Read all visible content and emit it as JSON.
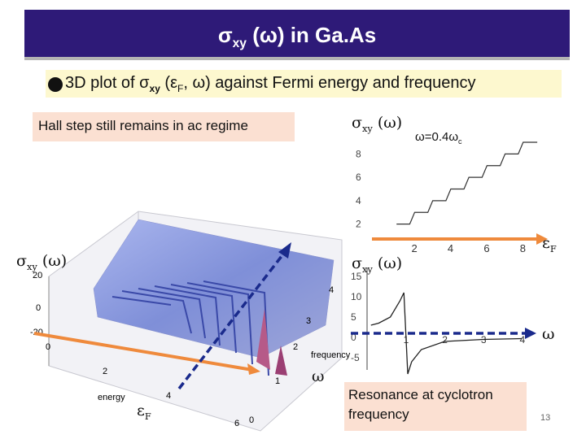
{
  "title": {
    "sym": "σ",
    "sub": "xy",
    "rest": " (ω) in Ga.As"
  },
  "bullet": {
    "pre": "3D plot of σ",
    "sub": "xy",
    "post": " (ε",
    "sub2": "F",
    "tail": ", ω) against Fermi energy and frequency"
  },
  "hall_note": "Hall step still remains in ac regime",
  "resonance_note": {
    "line1": "Resonance at cyclotron",
    "line2": "frequency"
  },
  "labels": {
    "sigma": "σ",
    "xy": "xy",
    "omega_paren": "(ω)",
    "omega": "ω",
    "epsilon": "ε",
    "F": "F",
    "omega_eq": "ω=0.4ω",
    "omega_eq_sub": "c"
  },
  "plot3d": {
    "axis_frequency": "frequency",
    "axis_energy": "energy",
    "ticks_energy": [
      "0",
      "2",
      "4",
      "6"
    ],
    "ticks_frequency": [
      "0",
      "1",
      "2",
      "3",
      "4"
    ],
    "ticks_z": [
      "20",
      "0",
      "-20"
    ]
  },
  "inset_top": {
    "chart_data": {
      "type": "line",
      "title": "",
      "xlabel": "εF",
      "ylabel": "σxy (ω)",
      "x_ticks": [
        "2",
        "4",
        "6",
        "8"
      ],
      "y_ticks": [
        "8",
        "6",
        "4",
        "2"
      ],
      "xlim": [
        0,
        9
      ],
      "ylim": [
        1,
        9
      ],
      "series": [
        {
          "name": "ω=0.4ωc",
          "x": [
            1,
            2,
            3,
            4,
            5,
            6,
            7,
            8,
            8.6
          ],
          "y": [
            2,
            3,
            4,
            5,
            6,
            7,
            8,
            9,
            9
          ]
        }
      ]
    }
  },
  "inset_bottom": {
    "chart_data": {
      "type": "line",
      "title": "",
      "xlabel": "ω",
      "ylabel": "σxy (ω)",
      "x_ticks": [
        "1",
        "2",
        "3",
        "4"
      ],
      "y_ticks": [
        "15",
        "10",
        "5",
        "0",
        "-5"
      ],
      "xlim": [
        0,
        4.2
      ],
      "ylim": [
        -8,
        17
      ],
      "series": [
        {
          "name": "σxy",
          "x": [
            0.1,
            0.3,
            0.6,
            0.85,
            0.95,
            1.05,
            1.15,
            1.4,
            2,
            3,
            4
          ],
          "y": [
            3,
            3.5,
            5,
            9,
            11,
            -9,
            -6,
            -3,
            -1,
            -0.5,
            -0.3
          ]
        }
      ]
    }
  },
  "page_number": "13",
  "colors": {
    "title_bg": "#2e1a78",
    "bullet_bg": "#fdf8cf",
    "note_bg": "#fbe0d2",
    "axis_orange": "#ef8a3c",
    "axis_blue": "#1a2a8c",
    "surface": "#7f8fd8"
  }
}
